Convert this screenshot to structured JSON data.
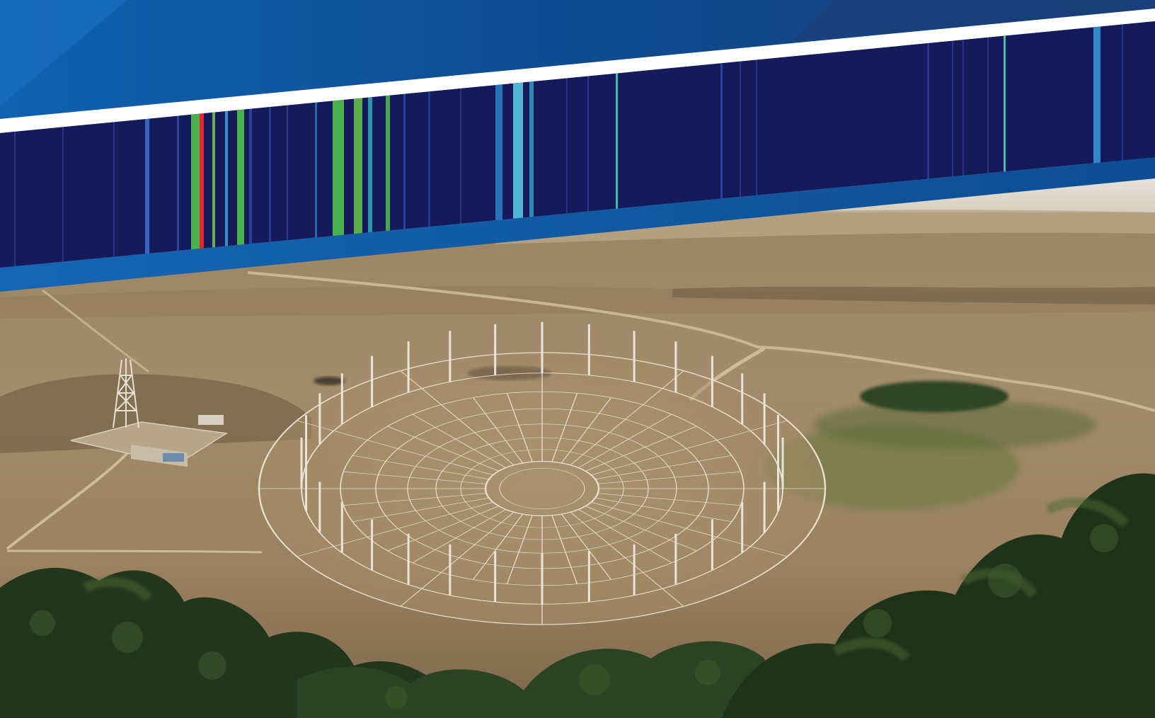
{
  "scene": {
    "subject": "circular-array-radio-telescope-in-arid-hills",
    "elements": [
      "blue-header-banner",
      "spectrogram-strip",
      "antenna-array",
      "station-buildings",
      "lattice-tower",
      "foreground-trees"
    ]
  },
  "colors": {
    "banner_top": "#0d4b8e",
    "banner_dark": "#0b3f7d",
    "banner_light": "#1767b3",
    "accent_stripe": "#ffffff",
    "spectrogram_background": "#151a5a",
    "spectrogram_signal_red": "#e8252a",
    "spectrogram_signal_green": "#4fc24a",
    "spectrogram_signal_cyan": "#38b8e0",
    "sky_haze": "#e9e6e0",
    "terrain_dry": "#a8906c",
    "terrain_shadow": "#7f6a4c",
    "vegetation": "#4d6236",
    "tree_canopy": "#243a1f"
  }
}
